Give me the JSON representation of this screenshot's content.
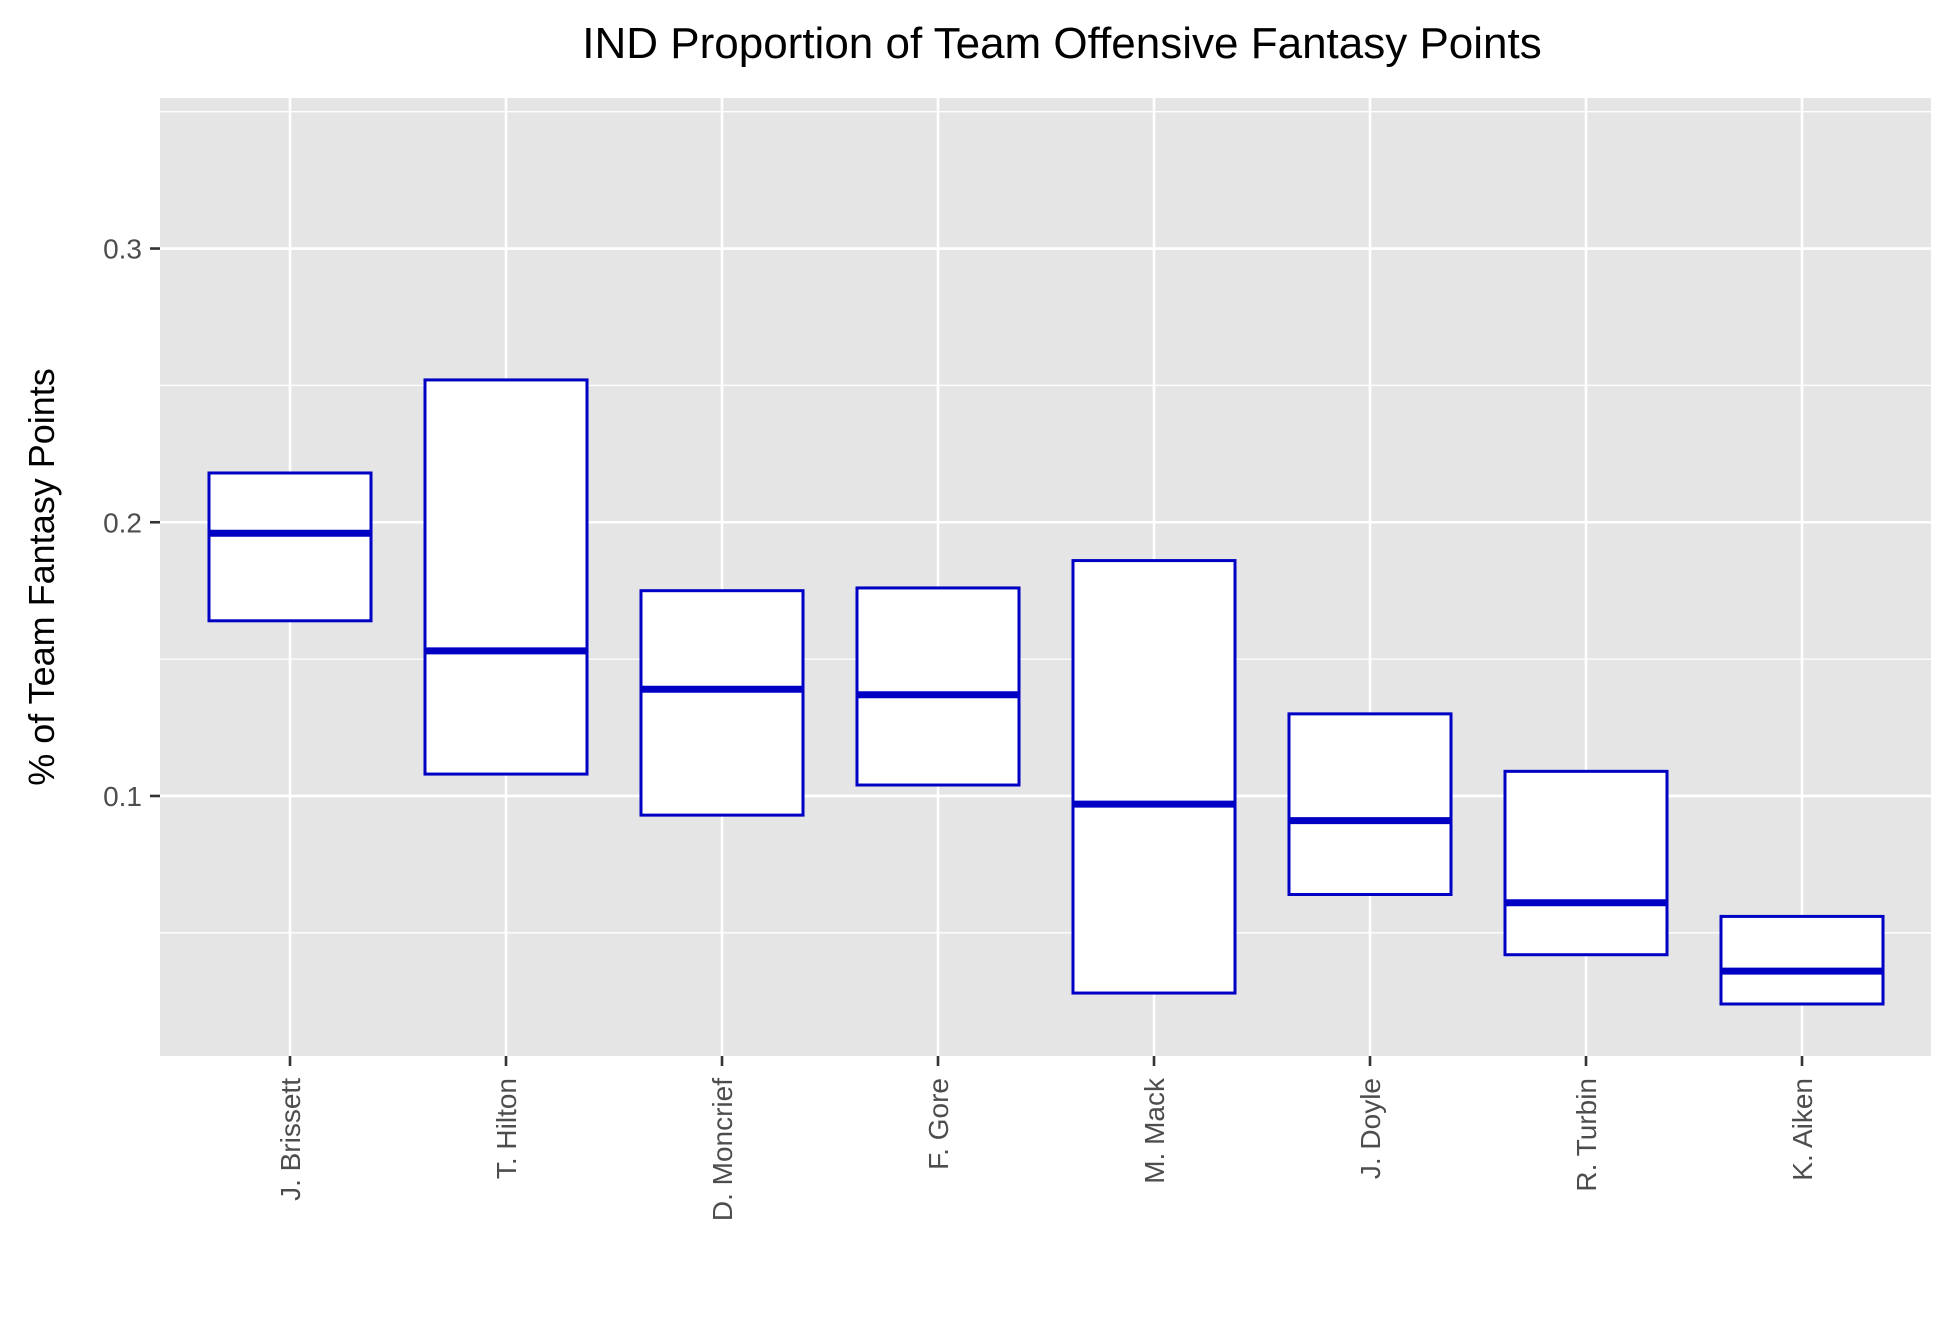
{
  "chart_data": {
    "type": "boxplot",
    "title": "IND Proportion of Team Offensive Fantasy Points",
    "xlabel": "",
    "ylabel": "% of Team Fantasy Points",
    "ylim": [
      0.005,
      0.355
    ],
    "yticks": [
      {
        "value": 0.1,
        "label": "0.1"
      },
      {
        "value": 0.2,
        "label": "0.2"
      },
      {
        "value": 0.3,
        "label": "0.3"
      }
    ],
    "y_minor_gridlines": [
      0.05,
      0.15,
      0.25,
      0.35
    ],
    "grid": true,
    "background_color": "#e5e5e5",
    "box_color": "#0000c4",
    "categories": [
      "J. Brissett",
      "T. Hilton",
      "D. Moncrief",
      "F. Gore",
      "M. Mack",
      "J. Doyle",
      "R. Turbin",
      "K. Aiken"
    ],
    "boxes": [
      {
        "category": "J. Brissett",
        "lower": 0.164,
        "median": 0.196,
        "upper": 0.218
      },
      {
        "category": "T. Hilton",
        "lower": 0.108,
        "median": 0.153,
        "upper": 0.252
      },
      {
        "category": "D. Moncrief",
        "lower": 0.093,
        "median": 0.139,
        "upper": 0.175
      },
      {
        "category": "F. Gore",
        "lower": 0.104,
        "median": 0.137,
        "upper": 0.176
      },
      {
        "category": "M. Mack",
        "lower": 0.028,
        "median": 0.097,
        "upper": 0.186
      },
      {
        "category": "J. Doyle",
        "lower": 0.064,
        "median": 0.091,
        "upper": 0.13
      },
      {
        "category": "R. Turbin",
        "lower": 0.042,
        "median": 0.061,
        "upper": 0.109
      },
      {
        "category": "K. Aiken",
        "lower": 0.024,
        "median": 0.036,
        "upper": 0.056
      }
    ]
  }
}
